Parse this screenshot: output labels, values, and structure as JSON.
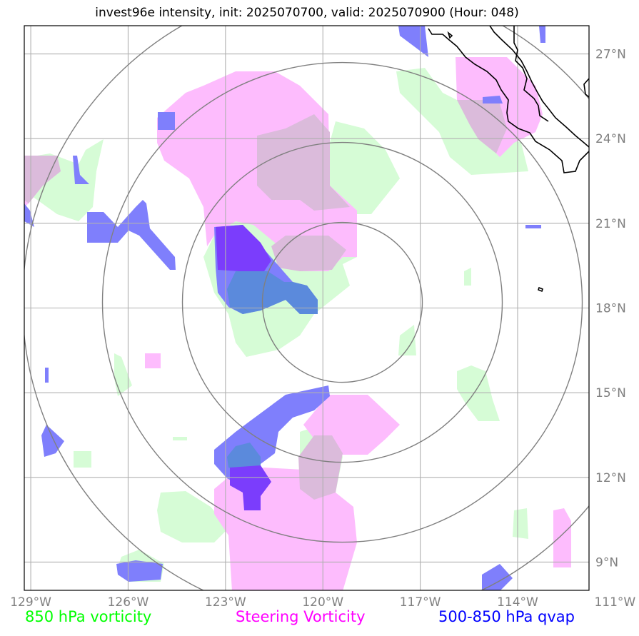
{
  "title": "invest96e intensity, init: 2025070700, valid: 2025070900 (Hour: 048)",
  "map": {
    "lon_range": [
      -129.2,
      -111.8
    ],
    "lat_range": [
      8.0,
      28.0
    ],
    "lon_ticks": [
      {
        "value": -129,
        "label": "129°W"
      },
      {
        "value": -126,
        "label": "126°W"
      },
      {
        "value": -123,
        "label": "123°W"
      },
      {
        "value": -120,
        "label": "120°W"
      },
      {
        "value": -117,
        "label": "117°W"
      },
      {
        "value": -114,
        "label": "114°W"
      },
      {
        "value": -111,
        "label": "111°W"
      }
    ],
    "lat_ticks": [
      {
        "value": 9,
        "label": "9°N"
      },
      {
        "value": 12,
        "label": "12°N"
      },
      {
        "value": 15,
        "label": "15°N"
      },
      {
        "value": 18,
        "label": "18°N"
      },
      {
        "value": 21,
        "label": "21°N"
      },
      {
        "value": 24,
        "label": "24°N"
      },
      {
        "value": 27,
        "label": "27°N"
      }
    ],
    "storm_center": {
      "lon": -119.4,
      "lat": 18.2
    },
    "range_ring_count": 4,
    "gridlines": true
  },
  "legend": {
    "vort_label": "850 hPa vorticity",
    "steer_label": "Steering Vorticity",
    "qvap_label": "500-850 hPa qvap"
  },
  "colors": {
    "vorticity": "#00ff00",
    "steering": "#ff00ff",
    "qvap": "#0000ff",
    "vorticity_fill": "#d6fcd6",
    "steering_fill": "#fdbcfd",
    "overlap_fill": "#dbbbdb",
    "qvap_fill": "#7f7ffc",
    "qvap_dark_fill": "#7b3dfc",
    "qvap_green_fill": "#5b8adc",
    "grid": "#b0b0b0",
    "ring": "#808080",
    "coast": "#000000"
  }
}
